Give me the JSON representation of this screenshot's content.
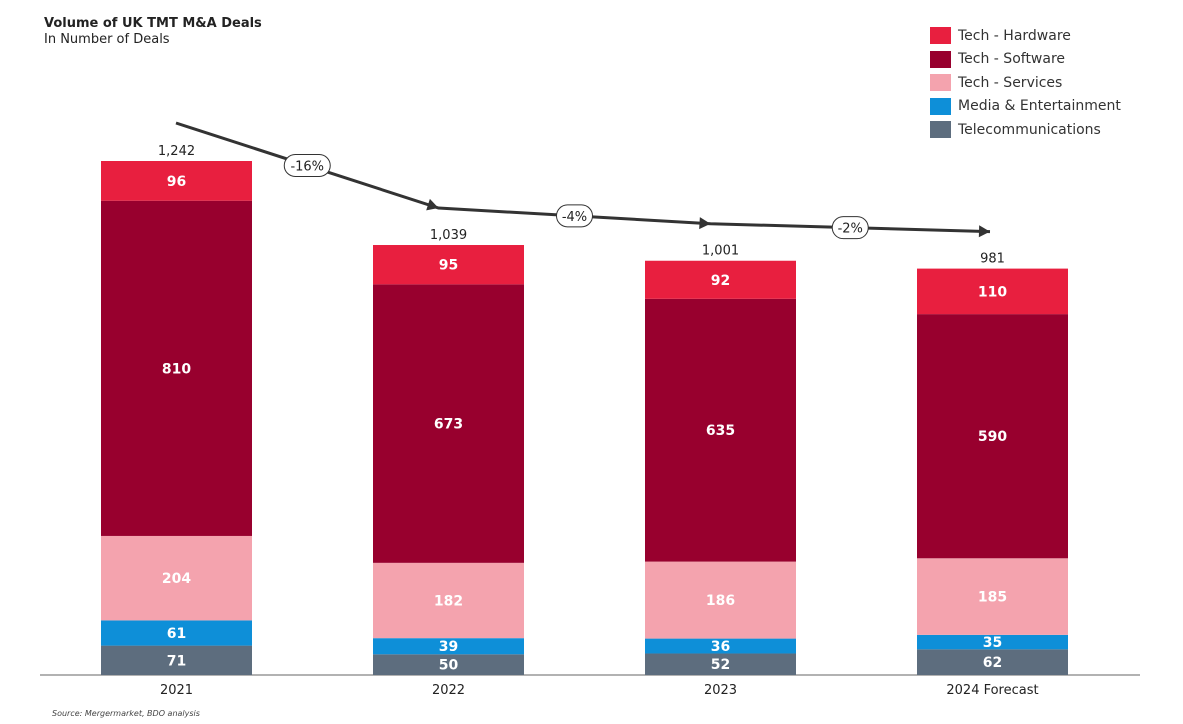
{
  "title": "Volume of UK TMT M&A Deals",
  "subtitle": "In Number of Deals",
  "source": "Source: Mergermarket, BDO analysis",
  "chart_data": {
    "type": "bar",
    "stacked": true,
    "title": "Volume of UK TMT M&A Deals",
    "subtitle": "In Number of Deals",
    "categories": [
      "2021",
      "2022",
      "2023",
      "2024 Forecast"
    ],
    "series": [
      {
        "name": "Telecommunications",
        "color": "#5d6d7e",
        "values": [
          71,
          50,
          52,
          62
        ]
      },
      {
        "name": "Media & Entertainment",
        "color": "#0e8fd8",
        "values": [
          61,
          39,
          36,
          35
        ]
      },
      {
        "name": "Tech - Services",
        "color": "#f4a3ae",
        "values": [
          204,
          182,
          186,
          185
        ]
      },
      {
        "name": "Tech - Software",
        "color": "#98002e",
        "values": [
          810,
          673,
          635,
          590
        ]
      },
      {
        "name": "Tech - Hardware",
        "color": "#e81f3f",
        "values": [
          96,
          95,
          92,
          110
        ]
      }
    ],
    "totals": [
      "1,242",
      "1,039",
      "1,001",
      "981"
    ],
    "trend_labels": [
      "-16%",
      "-4%",
      "-2%"
    ],
    "legend_order": [
      "Tech - Hardware",
      "Tech - Software",
      "Tech - Services",
      "Media & Entertainment",
      "Telecommunications"
    ],
    "legend_position": "top-right",
    "grid": false,
    "ylim": [
      0,
      1242
    ]
  }
}
